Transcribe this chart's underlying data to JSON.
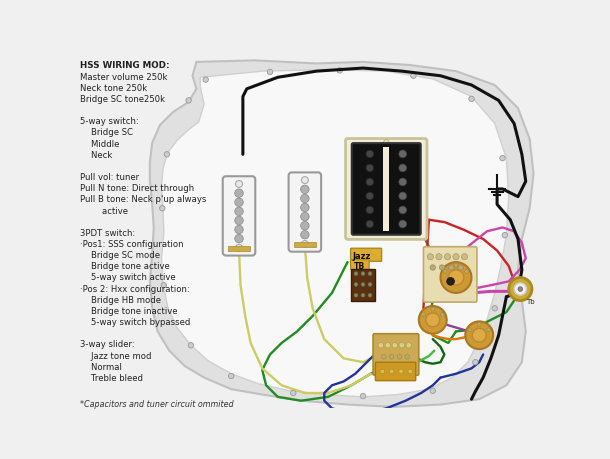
{
  "bg": "#f0f0f0",
  "body_fill": "#e0e0e0",
  "body_edge": "#c0c0c0",
  "pg_fill": "#f8f8f8",
  "pg_edge": "#d0d0d0",
  "text_color": "#222222",
  "title": "HSS WIRING MOD:",
  "ann_lines": [
    "Master volume 250k",
    "Neck tone 250k",
    "Bridge SC tone250k",
    "",
    "5-way switch:",
    "    Bridge SC",
    "    Middle",
    "    Neck",
    "",
    "Pull vol: tuner",
    "Pull N tone: Direct through",
    "Pull B tone: Neck p'up always",
    "        active",
    "",
    "3PDT switch:",
    "·Pos1: SSS configuration",
    "    Bridge SC mode",
    "    Bridge tone active",
    "    5-way switch active",
    "·Pos 2: Hxx configuration:",
    "    Bridge HB mode",
    "    Bridge tone inactive",
    "    5-way switch bypassed",
    "",
    "3-way slider:",
    "    Jazz tone mod",
    "    Normal",
    "    Treble bleed"
  ],
  "footer": "*Capacitors and tuner circuit ommited",
  "label_jazz": "Jazz",
  "label_tb": "TB",
  "label_ta": "Tb"
}
